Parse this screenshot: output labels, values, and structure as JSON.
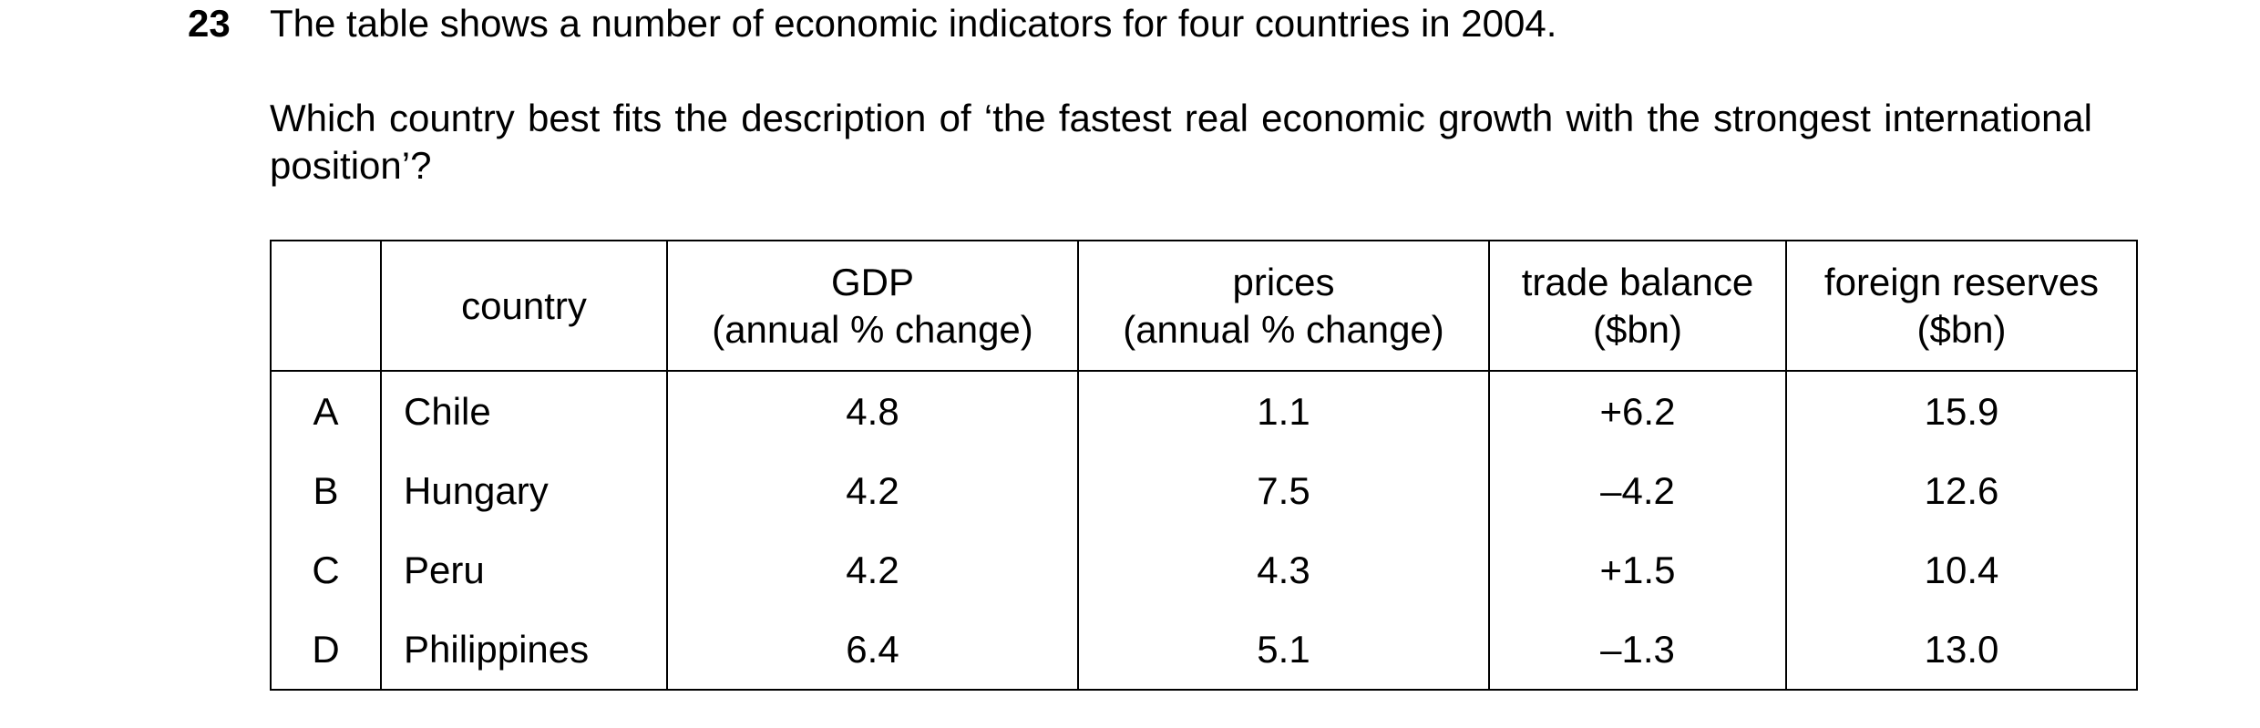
{
  "question": {
    "number": "23",
    "intro": "The table shows a number of economic indicators for four countries in 2004.",
    "prompt": "Which country best fits the description of ‘the fastest real economic growth with the strongest international position’?"
  },
  "table": {
    "headers": [
      {
        "line1": "",
        "line2": ""
      },
      {
        "line1": "country",
        "line2": ""
      },
      {
        "line1": "GDP",
        "line2": "(annual % change)"
      },
      {
        "line1": "prices",
        "line2": "(annual % change)"
      },
      {
        "line1": "trade balance",
        "line2": "($bn)"
      },
      {
        "line1": "foreign reserves",
        "line2": "($bn)"
      }
    ],
    "rows": [
      {
        "option": "A",
        "country": "Chile",
        "gdp": "4.8",
        "prices": "1.1",
        "trade_balance": "+6.2",
        "foreign_reserves": "15.9"
      },
      {
        "option": "B",
        "country": "Hungary",
        "gdp": "4.2",
        "prices": "7.5",
        "trade_balance": "–4.2",
        "foreign_reserves": "12.6"
      },
      {
        "option": "C",
        "country": "Peru",
        "gdp": "4.2",
        "prices": "4.3",
        "trade_balance": "+1.5",
        "foreign_reserves": "10.4"
      },
      {
        "option": "D",
        "country": "Philippines",
        "gdp": "6.4",
        "prices": "5.1",
        "trade_balance": "–1.3",
        "foreign_reserves": "13.0"
      }
    ]
  }
}
